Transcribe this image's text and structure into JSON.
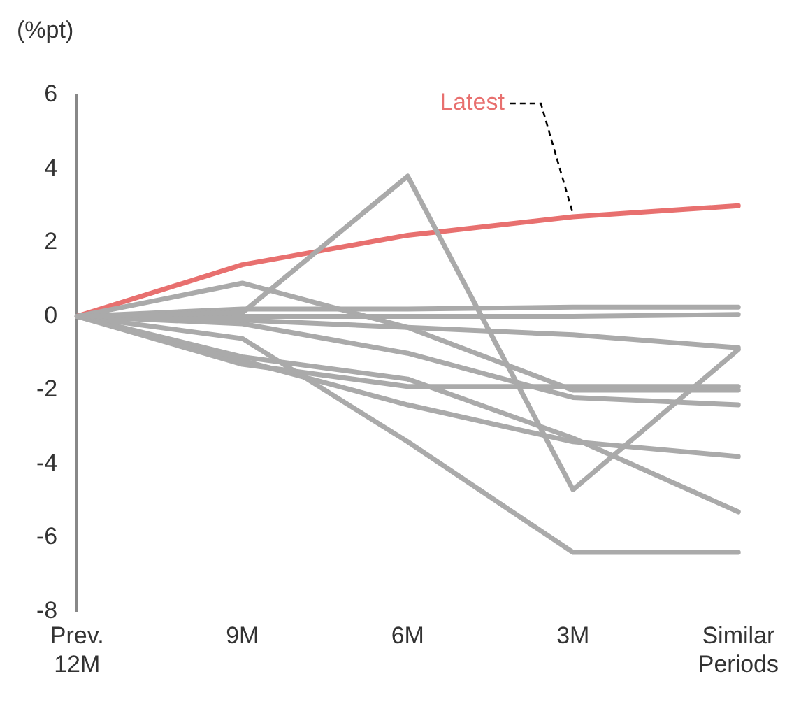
{
  "chart_data": {
    "type": "line",
    "ylabel": "(%pt)",
    "categories": [
      "Prev.\n12M",
      "9M",
      "6M",
      "3M",
      "Similar\nPeriods"
    ],
    "ylim": [
      -8,
      6
    ],
    "yticks": [
      -8,
      -6,
      -4,
      -2,
      0,
      2,
      4,
      6
    ],
    "grid": false,
    "legend": false,
    "marker": "none",
    "line_style": "solid",
    "annotations": [
      {
        "text": "Latest",
        "x": "3M",
        "y": 2.7
      }
    ],
    "series": [
      {
        "color": "#aaaaaa",
        "values": [
          0,
          0.1,
          3.8,
          -4.7,
          -0.9
        ]
      },
      {
        "color": "#aaaaaa",
        "values": [
          0,
          0.9,
          -0.3,
          -2.0,
          -2.0
        ]
      },
      {
        "color": "#aaaaaa",
        "values": [
          0,
          0.2,
          0.2,
          0.25,
          0.25
        ]
      },
      {
        "color": "#aaaaaa",
        "values": [
          0,
          0,
          0,
          0,
          0.05
        ]
      },
      {
        "color": "#aaaaaa",
        "values": [
          0,
          -0.1,
          -0.3,
          -0.5,
          -0.85
        ]
      },
      {
        "color": "#aaaaaa",
        "values": [
          0,
          -1.3,
          -1.9,
          -1.9,
          -1.9
        ]
      },
      {
        "color": "#aaaaaa",
        "values": [
          0,
          -0.6,
          -3.4,
          -6.4,
          -6.4
        ]
      },
      {
        "color": "#aaaaaa",
        "values": [
          0,
          -1.2,
          -2.4,
          -3.4,
          -3.8
        ]
      },
      {
        "color": "#aaaaaa",
        "values": [
          0,
          -1.1,
          -1.7,
          -3.3,
          -5.3
        ]
      },
      {
        "color": "#aaaaaa",
        "values": [
          0,
          -0.2,
          -1.0,
          -2.2,
          -2.4
        ]
      },
      {
        "color": "#e8706f",
        "values": [
          0,
          1.4,
          2.2,
          2.7,
          3.0
        ]
      }
    ]
  }
}
